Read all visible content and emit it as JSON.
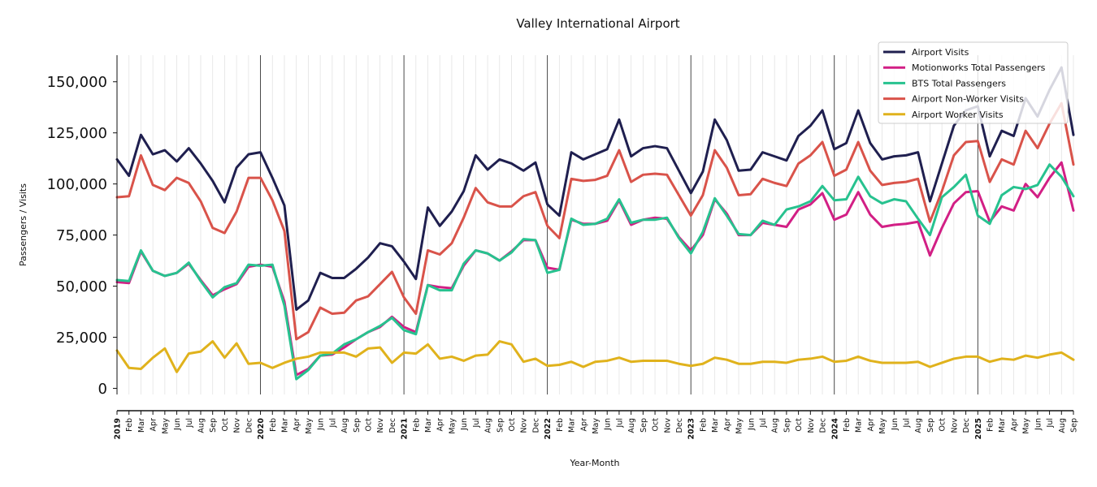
{
  "chart_data": {
    "type": "line",
    "title": "Valley International Airport",
    "xlabel": "Year-Month",
    "ylabel": "Passengers / Visits",
    "ylim": [
      -3000,
      163000
    ],
    "yticks": [
      0,
      25000,
      50000,
      75000,
      100000,
      125000,
      150000
    ],
    "ytick_labels": [
      "0",
      "25,000",
      "50,000",
      "75,000",
      "100,000",
      "125,000",
      "150,000"
    ],
    "x_start": "2019-01",
    "x_end": "2025-09",
    "x_tick_labels": [
      "2019",
      "Feb",
      "Mar",
      "Apr",
      "May",
      "Jun",
      "Jul",
      "Aug",
      "Sep",
      "Oct",
      "Nov",
      "Dec",
      "2020",
      "Feb",
      "Mar",
      "Apr",
      "May",
      "Jun",
      "Jul",
      "Aug",
      "Sep",
      "Oct",
      "Nov",
      "Dec",
      "2021",
      "Feb",
      "Mar",
      "Apr",
      "May",
      "Jun",
      "Jul",
      "Aug",
      "Sep",
      "Oct",
      "Nov",
      "Dec",
      "2022",
      "Feb",
      "Mar",
      "Apr",
      "May",
      "Jun",
      "Jul",
      "Aug",
      "Sep",
      "Oct",
      "Nov",
      "Dec",
      "2023",
      "Feb",
      "Mar",
      "Apr",
      "May",
      "Jun",
      "Jul",
      "Aug",
      "Sep",
      "Oct",
      "Nov",
      "Dec",
      "2024",
      "Feb",
      "Mar",
      "Apr",
      "May",
      "Jun",
      "Jul",
      "Aug",
      "Sep",
      "Oct",
      "Nov",
      "Dec",
      "2025",
      "Feb",
      "Mar",
      "Apr",
      "May",
      "Jun",
      "Jul",
      "Aug",
      "Sep"
    ],
    "year_boundaries": [
      "2020-01",
      "2021-01",
      "2022-01",
      "2023-01",
      "2024-01",
      "2025-01"
    ],
    "legend_position": "top-right",
    "grid": "vertical monthly lines",
    "series": [
      {
        "name": "Airport Visits",
        "color": "#1f1f4f",
        "values": [
          112000,
          104000,
          124000,
          114500,
          116500,
          111000,
          117500,
          110000,
          101500,
          91000,
          108000,
          114500,
          115500,
          103000,
          89500,
          38500,
          43000,
          56500,
          54000,
          54000,
          58500,
          64000,
          71000,
          69500,
          62000,
          53500,
          88500,
          79500,
          86500,
          96500,
          114000,
          107000,
          112000,
          110000,
          106500,
          110500,
          90000,
          84500,
          115500,
          112000,
          114500,
          117000,
          131500,
          113500,
          117500,
          118500,
          117500,
          106500,
          95500,
          106000,
          131500,
          121500,
          106500,
          107000,
          115500,
          113500,
          111500,
          123500,
          128500,
          136000,
          117000,
          120000,
          136000,
          120000,
          112000,
          113500,
          114000,
          115500,
          91500,
          110000,
          128500,
          136000,
          138000,
          113500,
          126000,
          123500,
          142000,
          133000,
          146000,
          157000,
          124000
        ]
      },
      {
        "name": "Motionworks Total Passengers",
        "color": "#d21f85",
        "values": [
          52000,
          51500,
          67000,
          57500,
          55000,
          56500,
          61000,
          53000,
          45500,
          48500,
          51000,
          59500,
          60500,
          59500,
          42500,
          6500,
          9500,
          16000,
          16500,
          20000,
          24000,
          27500,
          30000,
          35000,
          30000,
          27500,
          50500,
          49500,
          49000,
          60000,
          67500,
          66000,
          62500,
          67000,
          72500,
          72500,
          59000,
          58000,
          82500,
          80500,
          80500,
          82000,
          92000,
          80000,
          82500,
          83500,
          83000,
          74000,
          67500,
          75000,
          92500,
          85500,
          75000,
          75000,
          81000,
          80000,
          79000,
          87500,
          90000,
          95500,
          82500,
          85000,
          96000,
          85000,
          79000,
          80000,
          80500,
          81500,
          65000,
          78500,
          90500,
          96000,
          96500,
          81500,
          89000,
          87000,
          100000,
          93500,
          103000,
          110500,
          87000
        ]
      },
      {
        "name": "BTS Total Passengers",
        "color": "#27c28f",
        "values": [
          53000,
          52500,
          67500,
          57500,
          55000,
          56500,
          61500,
          52500,
          44500,
          49500,
          51500,
          60500,
          60000,
          60500,
          40500,
          4500,
          9000,
          16000,
          17000,
          21500,
          24000,
          27500,
          30500,
          34500,
          28500,
          26500,
          50500,
          48000,
          48000,
          61000,
          67500,
          66000,
          62500,
          66500,
          73000,
          72500,
          56500,
          58000,
          83000,
          80000,
          80500,
          83000,
          92500,
          81000,
          82500,
          82500,
          83500,
          73500,
          66000,
          76500,
          93000,
          84500,
          75500,
          75000,
          82000,
          80000,
          87500,
          89000,
          91500,
          99000,
          92000,
          92500,
          103500,
          94000,
          90500,
          92500,
          91500,
          83000,
          75000,
          93500,
          98500,
          104500,
          84500,
          80500,
          94500,
          98500,
          97500,
          99500,
          109500,
          103500,
          94000
        ]
      },
      {
        "name": "Airport Non-Worker Visits",
        "color": "#d9534a",
        "values": [
          93500,
          94000,
          114000,
          99500,
          97000,
          103000,
          100500,
          91500,
          78500,
          76000,
          86500,
          103000,
          103000,
          92000,
          77000,
          24000,
          27500,
          39500,
          36500,
          37000,
          43000,
          45000,
          51000,
          57000,
          44500,
          36500,
          67500,
          65500,
          71000,
          83500,
          98000,
          91000,
          89000,
          89000,
          94000,
          96000,
          79500,
          73500,
          102500,
          101500,
          102000,
          104000,
          116500,
          101000,
          104500,
          105000,
          104500,
          94500,
          84500,
          94500,
          116500,
          108000,
          94500,
          95000,
          102500,
          100500,
          99000,
          110000,
          114000,
          120500,
          104000,
          107000,
          120500,
          106500,
          99500,
          100500,
          101000,
          102500,
          81500,
          96500,
          114000,
          120500,
          121000,
          101000,
          112000,
          109500,
          126000,
          117500,
          129500,
          139500,
          109500
        ]
      },
      {
        "name": "Airport Worker Visits",
        "color": "#e0b21c",
        "values": [
          18500,
          10000,
          9500,
          15000,
          19500,
          8000,
          17000,
          18000,
          23000,
          15000,
          22000,
          12000,
          12500,
          10000,
          12500,
          14500,
          15500,
          17500,
          17500,
          17500,
          15500,
          19500,
          20000,
          12500,
          17500,
          17000,
          21500,
          14500,
          15500,
          13500,
          16000,
          16500,
          23000,
          21500,
          13000,
          14500,
          11000,
          11500,
          13000,
          10500,
          13000,
          13500,
          15000,
          13000,
          13500,
          13500,
          13500,
          12000,
          11000,
          12000,
          15000,
          14000,
          12000,
          12000,
          13000,
          13000,
          12500,
          14000,
          14500,
          15500,
          13000,
          13500,
          15500,
          13500,
          12500,
          12500,
          12500,
          13000,
          10500,
          12500,
          14500,
          15500,
          15500,
          13000,
          14500,
          14000,
          16000,
          15000,
          16500,
          17500,
          14000
        ]
      }
    ]
  }
}
